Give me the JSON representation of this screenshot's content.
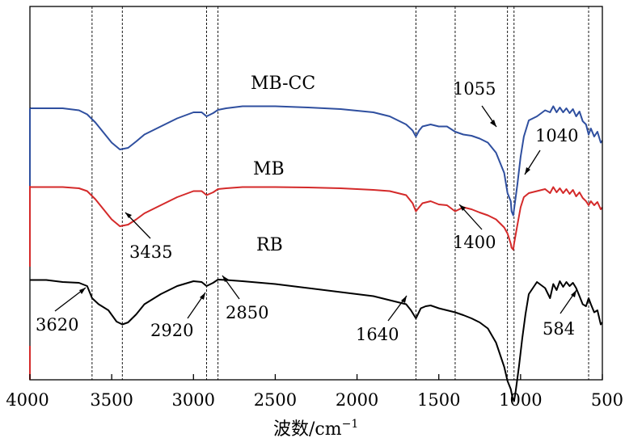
{
  "chart_data": {
    "type": "line",
    "title": "",
    "xlabel": "波数/cm",
    "xlabel_superscript": "−1",
    "ylabel": "",
    "xlim": [
      4000,
      500
    ],
    "x_ticks": [
      4000,
      3500,
      3000,
      2500,
      2000,
      1500,
      1000,
      500
    ],
    "y_axis_ticks": false,
    "reference_lines": [
      3620,
      3435,
      2920,
      2850,
      1640,
      1400,
      1080,
      1040,
      584
    ],
    "series": [
      {
        "name": "MB-CC",
        "color": "#2f4f9f",
        "x": [
          4000,
          3800,
          3700,
          3650,
          3600,
          3550,
          3500,
          3450,
          3400,
          3350,
          3300,
          3200,
          3100,
          3000,
          2950,
          2920,
          2880,
          2850,
          2800,
          2700,
          2500,
          2300,
          2100,
          1900,
          1800,
          1700,
          1660,
          1640,
          1620,
          1600,
          1550,
          1500,
          1450,
          1400,
          1350,
          1300,
          1250,
          1200,
          1150,
          1100,
          1080,
          1060,
          1055,
          1045,
          1040,
          1020,
          1000,
          980,
          950,
          900,
          850,
          820,
          800,
          780,
          760,
          740,
          720,
          700,
          680,
          660,
          640,
          620,
          600,
          584,
          570,
          550,
          530,
          510,
          500
        ],
        "y": [
          5.4,
          5.4,
          5.35,
          5.25,
          5.05,
          4.8,
          4.55,
          4.38,
          4.42,
          4.58,
          4.75,
          4.95,
          5.15,
          5.3,
          5.3,
          5.2,
          5.28,
          5.36,
          5.4,
          5.45,
          5.45,
          5.42,
          5.38,
          5.3,
          5.2,
          5.0,
          4.85,
          4.7,
          4.85,
          4.95,
          5.0,
          4.95,
          4.95,
          4.82,
          4.75,
          4.72,
          4.65,
          4.55,
          4.3,
          3.8,
          3.3,
          3.1,
          2.85,
          2.75,
          2.9,
          3.5,
          4.2,
          4.7,
          5.1,
          5.2,
          5.35,
          5.3,
          5.45,
          5.3,
          5.42,
          5.3,
          5.4,
          5.28,
          5.38,
          5.2,
          5.32,
          5.08,
          5.0,
          4.75,
          4.9,
          4.7,
          4.82,
          4.55,
          4.6
        ]
      },
      {
        "name": "MB",
        "color": "#d42a2a",
        "x": [
          4000,
          3800,
          3700,
          3650,
          3600,
          3550,
          3500,
          3450,
          3400,
          3350,
          3300,
          3200,
          3100,
          3000,
          2950,
          2920,
          2880,
          2850,
          2800,
          2700,
          2500,
          2300,
          2100,
          1900,
          1800,
          1700,
          1660,
          1640,
          1620,
          1600,
          1550,
          1500,
          1450,
          1400,
          1350,
          1300,
          1250,
          1200,
          1150,
          1100,
          1080,
          1060,
          1055,
          1045,
          1040,
          1020,
          1000,
          980,
          950,
          900,
          850,
          820,
          800,
          780,
          760,
          740,
          720,
          700,
          680,
          660,
          640,
          620,
          600,
          584,
          570,
          550,
          530,
          510,
          500
        ],
        "y": [
          3.45,
          3.45,
          3.42,
          3.35,
          3.15,
          2.9,
          2.65,
          2.48,
          2.52,
          2.65,
          2.8,
          3.0,
          3.2,
          3.35,
          3.35,
          3.25,
          3.32,
          3.4,
          3.42,
          3.45,
          3.45,
          3.44,
          3.42,
          3.38,
          3.35,
          3.25,
          3.05,
          2.85,
          2.95,
          3.05,
          3.1,
          3.02,
          3.0,
          2.85,
          2.95,
          2.9,
          2.82,
          2.75,
          2.65,
          2.45,
          2.3,
          2.05,
          1.95,
          1.9,
          2.05,
          2.5,
          2.95,
          3.2,
          3.3,
          3.35,
          3.4,
          3.3,
          3.45,
          3.32,
          3.42,
          3.3,
          3.4,
          3.28,
          3.38,
          3.22,
          3.32,
          3.18,
          3.1,
          3.0,
          3.1,
          3.0,
          3.08,
          2.9,
          2.95
        ]
      },
      {
        "name": "RB",
        "color": "#000000",
        "x": [
          4000,
          3900,
          3800,
          3700,
          3650,
          3620,
          3580,
          3520,
          3470,
          3435,
          3400,
          3350,
          3300,
          3200,
          3100,
          3000,
          2950,
          2920,
          2880,
          2850,
          2800,
          2700,
          2500,
          2300,
          2100,
          1900,
          1800,
          1700,
          1670,
          1640,
          1610,
          1580,
          1550,
          1500,
          1450,
          1400,
          1350,
          1300,
          1250,
          1200,
          1150,
          1100,
          1080,
          1060,
          1050,
          1040,
          1030,
          1010,
          990,
          970,
          950,
          900,
          850,
          820,
          800,
          780,
          760,
          740,
          720,
          700,
          680,
          660,
          640,
          620,
          600,
          584,
          570,
          550,
          530,
          510,
          500
        ],
        "y": [
          1.15,
          1.15,
          1.1,
          1.08,
          1.0,
          0.7,
          0.55,
          0.4,
          0.12,
          0.05,
          0.1,
          0.3,
          0.55,
          0.8,
          1.0,
          1.12,
          1.1,
          1.0,
          1.08,
          1.16,
          1.15,
          1.12,
          1.05,
          0.95,
          0.85,
          0.75,
          0.65,
          0.55,
          0.4,
          0.2,
          0.45,
          0.5,
          0.52,
          0.45,
          0.4,
          0.35,
          0.28,
          0.2,
          0.1,
          -0.05,
          -0.4,
          -1.0,
          -1.35,
          -1.55,
          -1.75,
          -1.85,
          -1.6,
          -1.0,
          -0.3,
          0.3,
          0.8,
          1.1,
          0.95,
          0.7,
          1.05,
          0.9,
          1.12,
          0.98,
          1.1,
          1.0,
          1.08,
          0.95,
          0.75,
          0.55,
          0.5,
          0.7,
          0.55,
          0.35,
          0.4,
          0.05,
          0.1
        ]
      }
    ],
    "annotations": [
      {
        "text": "1055",
        "x": 1055
      },
      {
        "text": "1040",
        "x": 1040
      },
      {
        "text": "3435",
        "x": 3435
      },
      {
        "text": "1400",
        "x": 1400
      },
      {
        "text": "3620",
        "x": 3620
      },
      {
        "text": "2920",
        "x": 2920
      },
      {
        "text": "2850",
        "x": 2850
      },
      {
        "text": "1640",
        "x": 1640
      },
      {
        "text": "584",
        "x": 584
      }
    ]
  }
}
